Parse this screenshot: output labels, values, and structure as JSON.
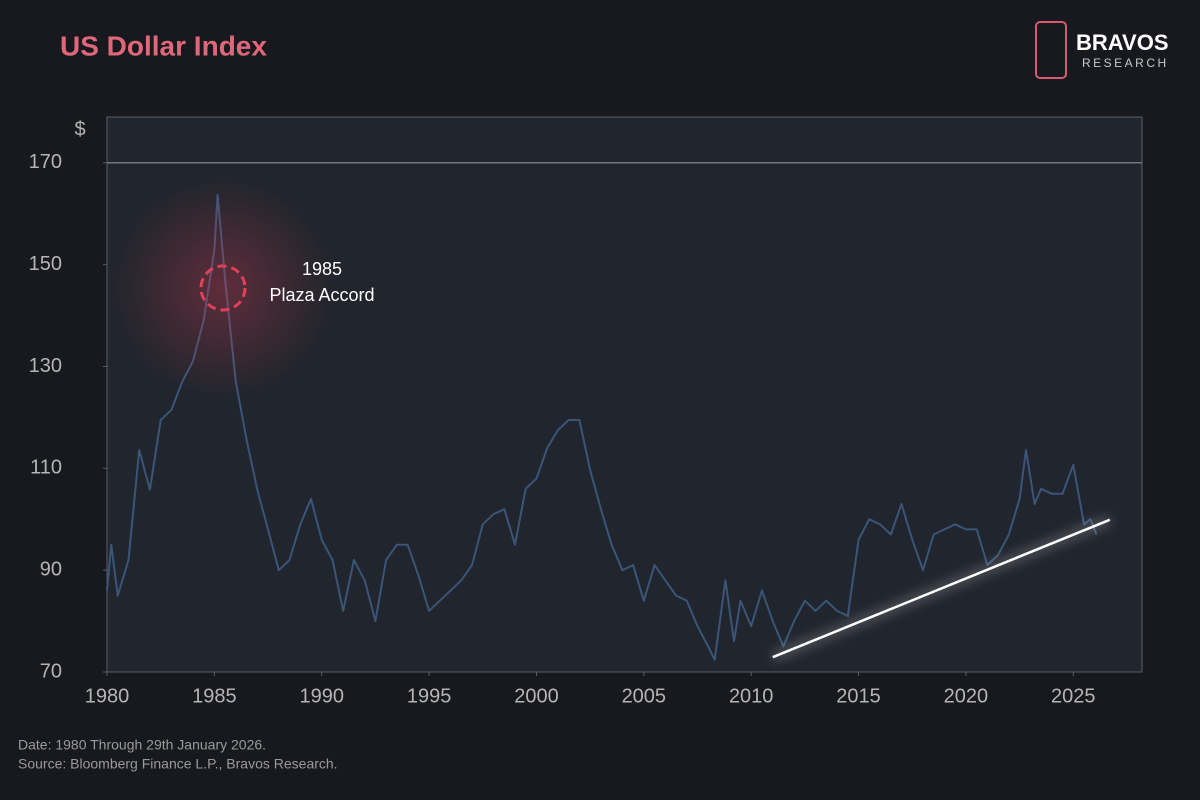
{
  "chart_data": {
    "type": "line",
    "title": "US Dollar Index",
    "y_label": "$",
    "logo": {
      "name": "BRAVOS",
      "sub": "RESEARCH"
    },
    "notes": [
      "Date: 1980 Through 29th January 2026.",
      "Source: Bloomberg Finance L.P., Bravos Research."
    ],
    "annotation": [
      "1985",
      "Plaza Accord"
    ],
    "x": [
      1980,
      1980.2,
      1980.5,
      1981,
      1981.5,
      1982,
      1982.5,
      1983,
      1983.5,
      1984,
      1984.5,
      1985,
      1985.15,
      1985.5,
      1986,
      1986.5,
      1987,
      1987.5,
      1988,
      1988.5,
      1989,
      1989.5,
      1990,
      1990.5,
      1991,
      1991.5,
      1992,
      1992.5,
      1993,
      1993.5,
      1994,
      1994.5,
      1995,
      1995.5,
      1996,
      1996.5,
      1997,
      1997.5,
      1998,
      1998.5,
      1999,
      1999.5,
      2000,
      2000.5,
      2001,
      2001.5,
      2002,
      2002.5,
      2003,
      2003.5,
      2004,
      2004.5,
      2005,
      2005.5,
      2006,
      2006.5,
      2007,
      2007.5,
      2008,
      2008.3,
      2008.8,
      2009.2,
      2009.5,
      2010,
      2010.5,
      2011,
      2011.5,
      2012,
      2012.5,
      2013,
      2013.5,
      2014,
      2014.5,
      2015,
      2015.5,
      2016,
      2016.5,
      2017,
      2017.5,
      2018,
      2018.5,
      2019,
      2019.5,
      2020,
      2020.5,
      2021,
      2021.5,
      2022,
      2022.5,
      2022.8,
      2023.2,
      2023.5,
      2024,
      2024.5,
      2025,
      2025.5,
      2025.8,
      2026.08
    ],
    "series": [
      {
        "color": "#3b5578",
        "values": [
          86,
          95,
          85,
          92,
          113.6,
          105.8,
          119.5,
          121.5,
          127,
          131,
          139,
          153,
          163.7,
          147,
          127,
          115.6,
          105.8,
          98,
          90,
          92,
          99,
          104,
          96,
          92,
          82,
          92,
          88,
          80,
          92,
          95,
          95,
          89,
          82,
          84,
          86,
          88,
          91,
          99,
          101,
          102,
          95,
          106,
          108,
          114,
          117.5,
          119.5,
          119.5,
          109.7,
          102,
          95,
          90,
          91,
          84,
          91,
          88,
          85,
          84,
          79,
          75,
          72.4,
          88,
          76,
          84,
          79,
          86,
          80,
          75,
          80,
          84,
          82,
          84,
          82,
          81,
          96,
          100,
          99,
          97,
          103,
          96,
          90,
          97,
          98,
          99,
          98,
          98,
          91,
          93,
          97,
          104,
          113.6,
          103,
          106,
          105,
          105,
          110.7,
          99,
          100,
          97
        ]
      }
    ],
    "trendline": {
      "color": "#ffffff",
      "x": [
        2011,
        2026.7
      ],
      "values": [
        72.9,
        99.9
      ]
    },
    "reference_line": 170,
    "xlim": [
      1980,
      2028.2
    ],
    "xticks": [
      1980,
      1985,
      1990,
      1995,
      2000,
      2005,
      2010,
      2015,
      2020,
      2025
    ],
    "ylim": [
      70,
      179
    ],
    "yticks": [
      70,
      90,
      110,
      130,
      150,
      170
    ]
  }
}
